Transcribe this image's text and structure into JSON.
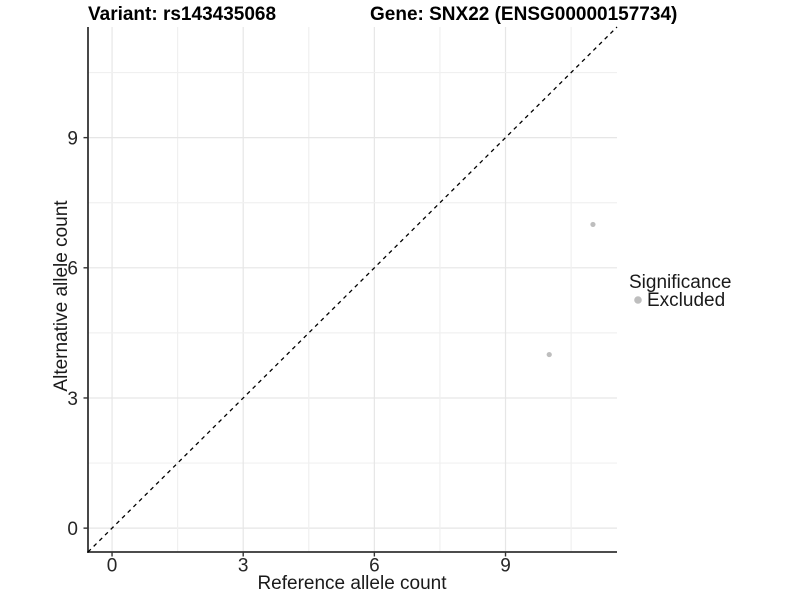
{
  "chart_data": {
    "type": "scatter",
    "title_left": "Variant: rs143435068",
    "title_right": "Gene: SNX22 (ENSG00000157734)",
    "xlabel": "Reference allele count",
    "ylabel": "Alternative allele count",
    "xlim": [
      -0.55,
      11.55
    ],
    "ylim": [
      -0.55,
      11.55
    ],
    "xticks": [
      0,
      3,
      6,
      9
    ],
    "yticks": [
      0,
      3,
      6,
      9
    ],
    "minor_grid_interval": 1.5,
    "grid": "major and minor gridlines on, white panel background",
    "identity_line": {
      "type": "y=x",
      "style": "dashed",
      "color": "#000000"
    },
    "legend": {
      "title": "Significance",
      "position": "right",
      "items": [
        {
          "label": "Excluded",
          "color": "#bebebe"
        }
      ]
    },
    "series": [
      {
        "name": "Excluded",
        "color": "#bebebe",
        "points": [
          [
            11,
            7
          ],
          [
            10,
            4
          ]
        ]
      }
    ]
  },
  "colors": {
    "background": "#ffffff",
    "grid_major": "#e6e6e6",
    "grid_minor": "#f0f0f0",
    "axis_line": "#333333",
    "tick_mark": "#333333",
    "point": "#bebebe"
  }
}
